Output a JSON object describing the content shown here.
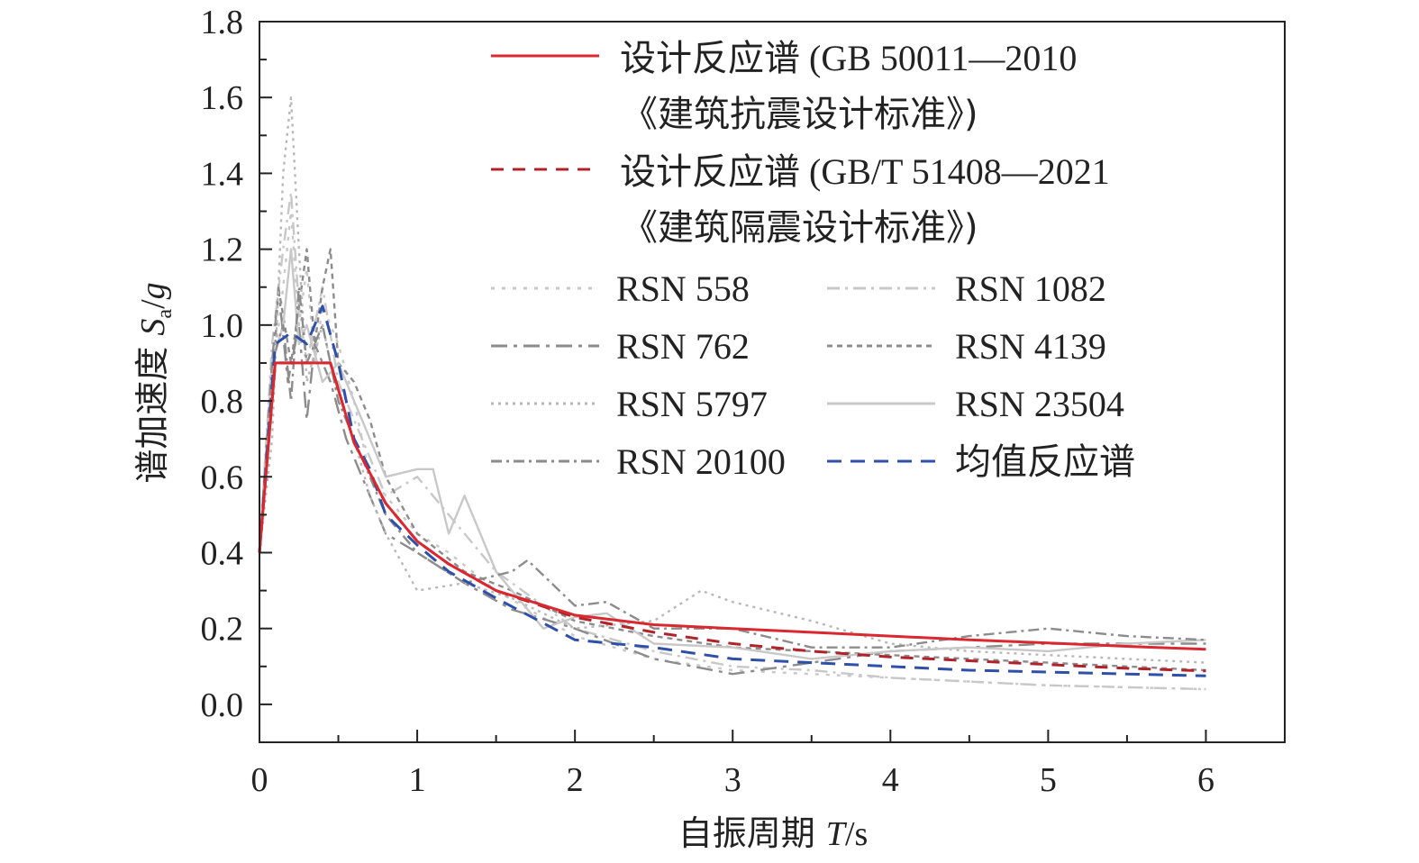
{
  "chart_data": {
    "type": "line",
    "xlabel": {
      "prefix": "自振周期 ",
      "var": "T",
      "unit": "/s"
    },
    "ylabel": {
      "prefix": "谱加速度 ",
      "var": "S",
      "sub": "a",
      "suffix": "/",
      "var2": "g"
    },
    "xlim": [
      0,
      6.5
    ],
    "ylim": [
      -0.1,
      1.8
    ],
    "xticks": [
      "0",
      "1",
      "2",
      "3",
      "4",
      "5",
      "6"
    ],
    "yticks": [
      "0.0",
      "0.2",
      "0.4",
      "0.6",
      "0.8",
      "1.0",
      "1.2",
      "1.4",
      "1.6",
      "1.8"
    ],
    "grid": false,
    "legend_position": "top-right",
    "legend": {
      "code_line_1": {
        "cjk": "设计反应谱",
        "text": " (GB 50011—2010"
      },
      "code_line_1b": {
        "text": "《建筑抗震设计标准》)"
      },
      "code_line_2": {
        "cjk": "设计反应谱",
        "text": " (GB/T 51408—2021"
      },
      "code_line_2b": {
        "text": "《建筑隔震设计标准》)"
      }
    },
    "series": [
      {
        "name": "设计反应谱 (GB 50011—2010《建筑抗震设计标准》)",
        "color": "#d9282f",
        "dash": "solid",
        "x": [
          0,
          0.1,
          0.45,
          0.6,
          0.8,
          1.0,
          1.2,
          1.5,
          2.0,
          2.5,
          3.0,
          3.5,
          4.0,
          4.5,
          5.0,
          5.5,
          6.0
        ],
        "y": [
          0.4,
          0.9,
          0.9,
          0.69,
          0.53,
          0.43,
          0.37,
          0.3,
          0.235,
          0.21,
          0.2,
          0.19,
          0.18,
          0.17,
          0.162,
          0.153,
          0.145
        ]
      },
      {
        "name": "设计反应谱 (GB/T 51408—2021《建筑隔震设计标准》)",
        "color": "#b0232a",
        "dash": "14,10",
        "x": [
          0,
          0.1,
          0.45,
          0.6,
          0.8,
          1.0,
          1.2,
          1.5,
          2.0,
          2.5,
          3.0,
          3.5,
          4.0,
          4.5,
          5.0,
          5.5,
          6.0
        ],
        "y": [
          0.4,
          0.9,
          0.9,
          0.69,
          0.53,
          0.43,
          0.37,
          0.3,
          0.23,
          0.19,
          0.16,
          0.14,
          0.125,
          0.115,
          0.105,
          0.095,
          0.088
        ]
      },
      {
        "name": "RSN 558",
        "color": "#c8c8c8",
        "dash": "4,8",
        "x": [
          0,
          0.08,
          0.15,
          0.2,
          0.25,
          0.3,
          0.35,
          0.4,
          0.5,
          0.6,
          0.7,
          0.8,
          1.0,
          1.2,
          1.5,
          2.0,
          2.5,
          3.0,
          3.5,
          4.0,
          4.5,
          5.0,
          5.5,
          6.0
        ],
        "y": [
          0.4,
          0.85,
          1.1,
          1.3,
          1.0,
          1.15,
          0.9,
          1.05,
          0.95,
          0.8,
          0.6,
          0.55,
          0.45,
          0.4,
          0.3,
          0.18,
          0.12,
          0.09,
          0.08,
          0.07,
          0.06,
          0.05,
          0.045,
          0.04
        ]
      },
      {
        "name": "RSN 1082",
        "color": "#c8c8c8",
        "dash": "14,6,3,6",
        "x": [
          0,
          0.08,
          0.15,
          0.2,
          0.25,
          0.3,
          0.4,
          0.5,
          0.6,
          0.7,
          0.8,
          1.0,
          1.2,
          1.5,
          2.0,
          2.5,
          3.0,
          3.5,
          4.0,
          4.5,
          5.0,
          5.5,
          6.0
        ],
        "y": [
          0.4,
          0.95,
          1.2,
          1.35,
          1.05,
          0.9,
          1.1,
          0.85,
          0.75,
          0.65,
          0.55,
          0.6,
          0.5,
          0.35,
          0.2,
          0.14,
          0.1,
          0.09,
          0.07,
          0.06,
          0.05,
          0.045,
          0.04
        ]
      },
      {
        "name": "RSN 762",
        "color": "#8c8c8c",
        "dash": "18,7,4,7",
        "x": [
          0,
          0.08,
          0.12,
          0.18,
          0.25,
          0.3,
          0.35,
          0.45,
          0.55,
          0.65,
          0.8,
          1.0,
          1.3,
          1.6,
          2.0,
          2.5,
          3.0,
          3.5,
          4.0,
          4.5,
          5.0,
          5.5,
          6.0
        ],
        "y": [
          0.4,
          0.9,
          1.1,
          0.85,
          1.0,
          0.75,
          0.95,
          0.85,
          0.7,
          0.6,
          0.45,
          0.4,
          0.32,
          0.25,
          0.2,
          0.12,
          0.08,
          0.11,
          0.14,
          0.15,
          0.16,
          0.16,
          0.16
        ]
      },
      {
        "name": "RSN 4139",
        "color": "#8c8c8c",
        "dash": "6,5",
        "x": [
          0,
          0.08,
          0.12,
          0.2,
          0.25,
          0.3,
          0.35,
          0.4,
          0.45,
          0.5,
          0.6,
          0.7,
          0.8,
          1.0,
          1.3,
          1.6,
          2.0,
          2.5,
          3.0,
          3.5,
          4.0,
          4.5,
          5.0,
          5.5,
          6.0
        ],
        "y": [
          0.4,
          0.8,
          1.1,
          0.9,
          1.05,
          1.2,
          0.95,
          1.1,
          1.2,
          0.9,
          0.85,
          0.75,
          0.6,
          0.45,
          0.35,
          0.3,
          0.22,
          0.18,
          0.15,
          0.14,
          0.13,
          0.12,
          0.11,
          0.1,
          0.09
        ]
      },
      {
        "name": "RSN 5797",
        "color": "#b8b8b8",
        "dash": "3,5",
        "x": [
          0,
          0.08,
          0.15,
          0.2,
          0.25,
          0.3,
          0.4,
          0.5,
          0.6,
          0.7,
          0.8,
          1.0,
          1.3,
          1.6,
          2.0,
          2.5,
          2.8,
          3.0,
          3.5,
          4.0,
          4.5,
          5.0,
          5.5,
          6.0
        ],
        "y": [
          0.4,
          0.7,
          1.4,
          1.6,
          1.2,
          0.85,
          1.0,
          0.8,
          0.7,
          0.55,
          0.45,
          0.3,
          0.32,
          0.28,
          0.2,
          0.22,
          0.3,
          0.27,
          0.22,
          0.16,
          0.14,
          0.13,
          0.12,
          0.11
        ]
      },
      {
        "name": "RSN 23504",
        "color": "#c8c8c8",
        "dash": "solid",
        "x": [
          0,
          0.08,
          0.15,
          0.2,
          0.25,
          0.3,
          0.4,
          0.5,
          0.6,
          0.8,
          1.0,
          1.1,
          1.2,
          1.3,
          1.5,
          1.8,
          2.0,
          2.2,
          2.5,
          3.0,
          3.5,
          4.0,
          4.5,
          5.0,
          5.5,
          6.0
        ],
        "y": [
          0.4,
          0.9,
          1.0,
          1.2,
          0.95,
          1.0,
          0.85,
          0.9,
          0.8,
          0.6,
          0.62,
          0.62,
          0.45,
          0.55,
          0.35,
          0.2,
          0.23,
          0.24,
          0.16,
          0.15,
          0.12,
          0.14,
          0.15,
          0.14,
          0.16,
          0.17
        ]
      },
      {
        "name": "RSN 20100",
        "color": "#8c8c8c",
        "dash": "12,5,3,5",
        "x": [
          0,
          0.08,
          0.15,
          0.2,
          0.25,
          0.3,
          0.4,
          0.5,
          0.6,
          0.8,
          1.0,
          1.3,
          1.6,
          1.7,
          2.0,
          2.2,
          2.5,
          3.0,
          3.5,
          4.0,
          4.5,
          5.0,
          5.5,
          6.0
        ],
        "y": [
          0.4,
          0.9,
          1.0,
          0.8,
          1.1,
          0.9,
          1.0,
          0.8,
          0.7,
          0.5,
          0.4,
          0.32,
          0.35,
          0.38,
          0.26,
          0.27,
          0.2,
          0.2,
          0.15,
          0.15,
          0.18,
          0.2,
          0.18,
          0.17
        ]
      },
      {
        "name": "均值反应谱",
        "color": "#2f4fa8",
        "dash": "16,10",
        "x": [
          0,
          0.1,
          0.2,
          0.3,
          0.4,
          0.5,
          0.6,
          0.7,
          0.8,
          1.0,
          1.2,
          1.5,
          2.0,
          2.5,
          3.0,
          3.5,
          4.0,
          4.5,
          5.0,
          5.5,
          6.0
        ],
        "y": [
          0.4,
          0.95,
          0.98,
          0.95,
          1.05,
          0.9,
          0.7,
          0.62,
          0.5,
          0.42,
          0.35,
          0.28,
          0.17,
          0.15,
          0.12,
          0.11,
          0.1,
          0.09,
          0.085,
          0.08,
          0.075
        ]
      }
    ]
  }
}
